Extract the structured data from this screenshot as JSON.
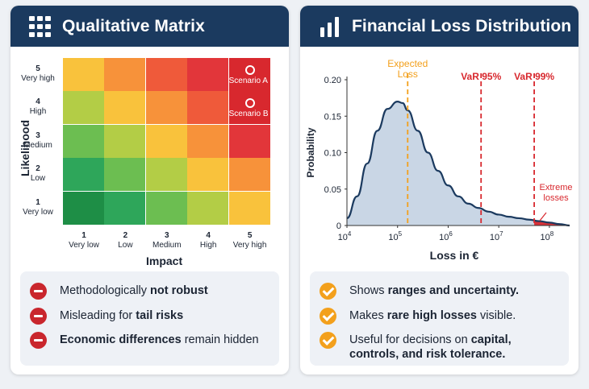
{
  "left_panel": {
    "title": "Qualitative Matrix",
    "icon": "grid-icon",
    "y_axis_title": "Likelihood",
    "x_axis_title": "Impact",
    "likelihood_levels": [
      {
        "num": "5",
        "label": "Very high"
      },
      {
        "num": "4",
        "label": "High"
      },
      {
        "num": "3",
        "label": "Medium"
      },
      {
        "num": "2",
        "label": "Low"
      },
      {
        "num": "1",
        "label": "Very low"
      }
    ],
    "impact_levels": [
      {
        "num": "1",
        "label": "Very low"
      },
      {
        "num": "2",
        "label": "Low"
      },
      {
        "num": "3",
        "label": "Medium"
      },
      {
        "num": "4",
        "label": "High"
      },
      {
        "num": "5",
        "label": "Very high"
      }
    ],
    "cell_colors": [
      [
        "#f9c23c",
        "#f7923a",
        "#ef5a3a",
        "#e2363a",
        "#d8282e"
      ],
      [
        "#b3cd46",
        "#f9c23c",
        "#f7923a",
        "#ef5a3a",
        "#d8282e"
      ],
      [
        "#6cbe51",
        "#b3cd46",
        "#f9c23c",
        "#f7923a",
        "#e2363a"
      ],
      [
        "#2ea65a",
        "#6cbe51",
        "#b3cd46",
        "#f9c23c",
        "#f7923a"
      ],
      [
        "#1e8e46",
        "#2ea65a",
        "#6cbe51",
        "#b3cd46",
        "#f9c23c"
      ]
    ],
    "scenarios": [
      {
        "label": "Scenario A",
        "likelihood": 5,
        "impact": 5
      },
      {
        "label": "Scenario B",
        "likelihood": 4,
        "impact": 5
      }
    ],
    "bullets": [
      {
        "pre": "Methodologically ",
        "bold": "not robust",
        "post": ""
      },
      {
        "pre": "Misleading for ",
        "bold": "tail risks",
        "post": ""
      },
      {
        "pre": "",
        "bold": "Economic differences",
        "post": " remain hidden"
      }
    ],
    "bullet_icon": "minus-circle-icon",
    "bullet_color": "#c9262d"
  },
  "right_panel": {
    "title": "Financial Loss Distribution",
    "icon": "bar-chart-icon",
    "bullets": [
      {
        "pre": "Shows ",
        "bold": "ranges and uncertainty.",
        "post": ""
      },
      {
        "pre": "Makes ",
        "bold": "rare high losses",
        "post": " visible."
      },
      {
        "pre": "Useful for decisions on ",
        "bold": "capital, controls, and risk tolerance.",
        "post": ""
      }
    ],
    "bullet_icon": "check-circle-icon",
    "bullet_color": "#f3a01c"
  },
  "chart_data": {
    "type": "area",
    "title": "",
    "xlabel": "Loss in €",
    "ylabel": "Probability",
    "x_scale": "log",
    "xlim_log10": [
      4,
      8.4
    ],
    "ylim": [
      0,
      0.2
    ],
    "x_ticks": [
      {
        "base": "10",
        "exp": "4",
        "value_log10": 4
      },
      {
        "base": "10",
        "exp": "5",
        "value_log10": 5
      },
      {
        "base": "10",
        "exp": "6",
        "value_log10": 6
      },
      {
        "base": "10",
        "exp": "7",
        "value_log10": 7
      },
      {
        "base": "10",
        "exp": "8",
        "value_log10": 8
      }
    ],
    "y_ticks": [
      "0",
      "0.05",
      "0.10",
      "0.15",
      "0.20"
    ],
    "series": [
      {
        "x_log10": [
          4.0,
          4.2,
          4.4,
          4.6,
          4.8,
          5.0,
          5.1,
          5.2,
          5.4,
          5.6,
          5.8,
          6.0,
          6.2,
          6.4,
          6.6,
          6.8,
          7.0,
          7.2,
          7.4,
          7.6,
          7.8,
          8.0,
          8.2,
          8.4
        ],
        "y": [
          0.01,
          0.04,
          0.085,
          0.13,
          0.16,
          0.17,
          0.168,
          0.158,
          0.13,
          0.1,
          0.075,
          0.055,
          0.04,
          0.03,
          0.024,
          0.019,
          0.015,
          0.012,
          0.01,
          0.008,
          0.006,
          0.004,
          0.002,
          0.0
        ]
      }
    ],
    "markers": [
      {
        "label": "Expected Loss",
        "x_log10": 5.2,
        "color": "#f3a01c"
      },
      {
        "label": "VaR 95%",
        "x_log10": 6.65,
        "color": "#d8282e"
      },
      {
        "label": "VaR 99%",
        "x_log10": 7.7,
        "color": "#d8282e"
      }
    ],
    "annotation": "Extreme losses",
    "tail_from_log10": 7.7,
    "fill_color": "#c9d6e5",
    "line_color": "#1b3a5f"
  }
}
